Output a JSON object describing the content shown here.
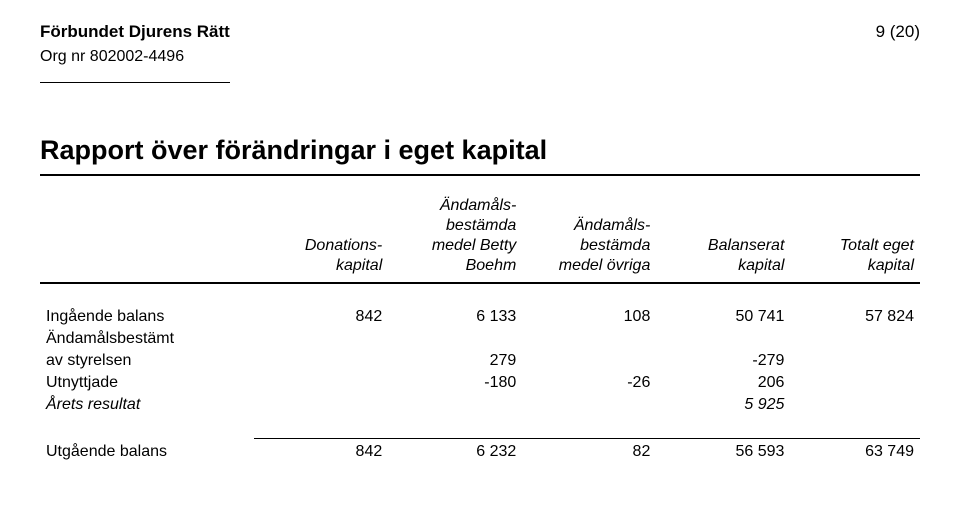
{
  "header": {
    "org_name": "Förbundet Djurens Rätt",
    "org_nr": "Org nr 802002-4496",
    "page_nr": "9 (20)"
  },
  "title": "Rapport över förändringar i eget kapital",
  "table": {
    "headers": {
      "c1": "Donations-\nkapital",
      "c2": "Ändamåls-\nbestämda\nmedel Betty\nBoehm",
      "c3": "Ändamåls-\nbestämda\nmedel övriga",
      "c4": "Balanserat\nkapital",
      "c5": "Totalt eget\nkapital"
    },
    "rows": [
      {
        "label": "Ingående balans",
        "c1": "842",
        "c2": "6 133",
        "c3": "108",
        "c4": "50 741",
        "c5": "57 824"
      },
      {
        "label": "Ändamålsbestämt",
        "c1": "",
        "c2": "",
        "c3": "",
        "c4": "",
        "c5": ""
      },
      {
        "label": "av styrelsen",
        "c1": "",
        "c2": "279",
        "c3": "",
        "c4": "-279",
        "c5": ""
      },
      {
        "label": "Utnyttjade",
        "c1": "",
        "c2": "-180",
        "c3": "-26",
        "c4": "206",
        "c5": ""
      },
      {
        "label": "Årets resultat",
        "c1": "",
        "c2": "",
        "c3": "",
        "c4": "5 925",
        "c5": "",
        "italic": true
      }
    ],
    "footer": {
      "label": "Utgående balans",
      "c1": "842",
      "c2": "6 232",
      "c3": "82",
      "c4": "56 593",
      "c5": "63 749"
    }
  }
}
